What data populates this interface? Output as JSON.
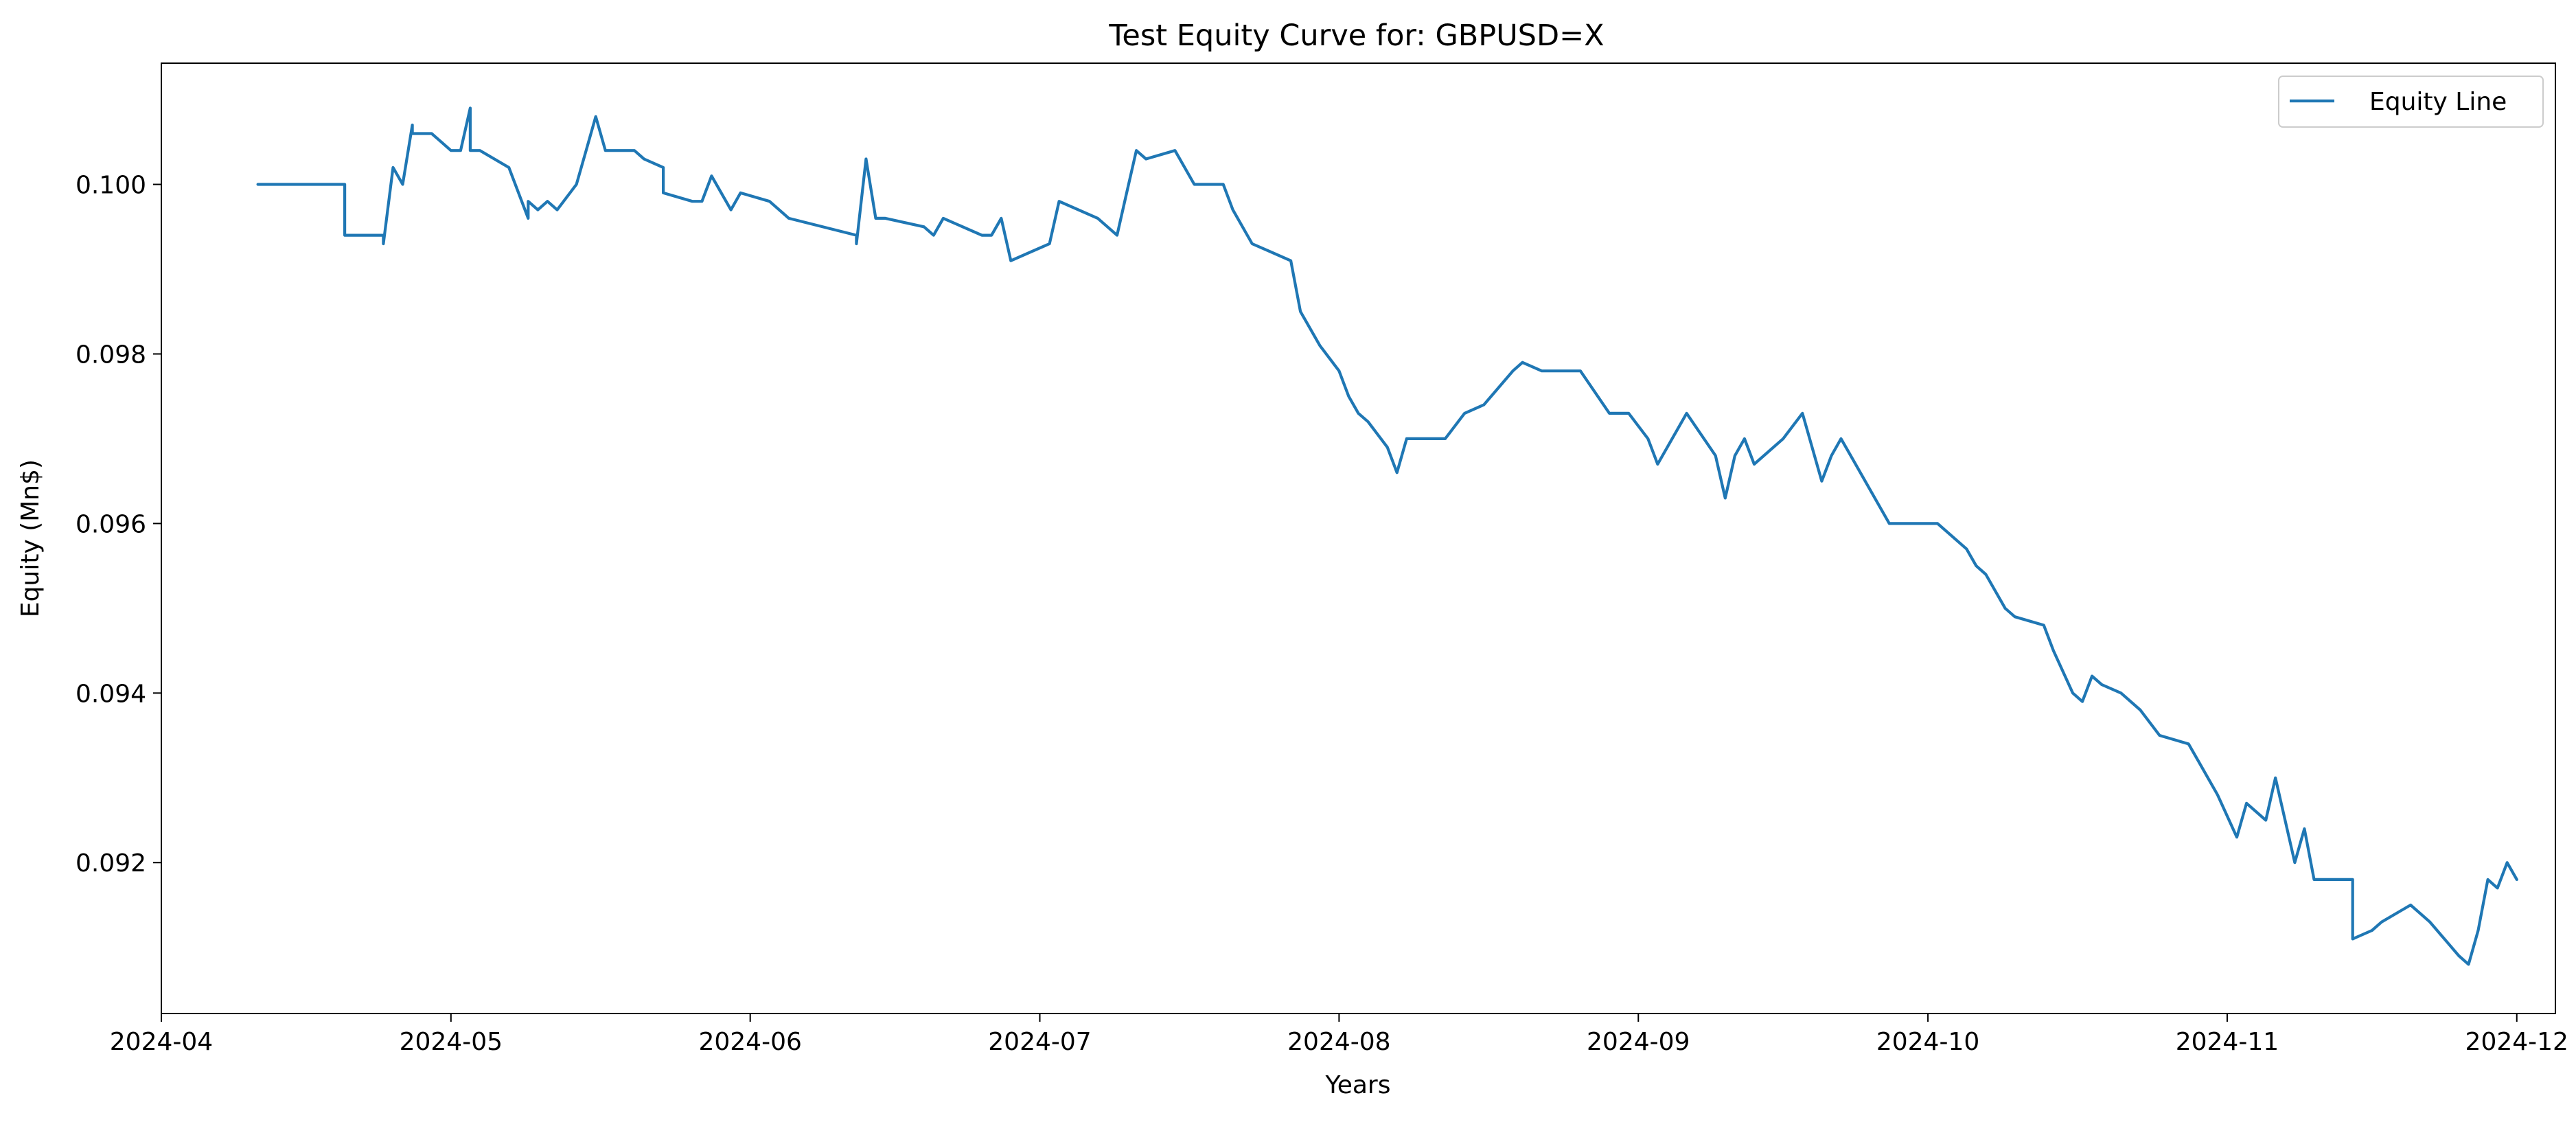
{
  "chart_data": {
    "type": "line",
    "title": "Test Equity Curve for: GBPUSD=X",
    "xlabel": "Years",
    "ylabel": "Equity (Mn$)",
    "xlim": [
      "2024-04-01",
      "2024-12-05"
    ],
    "ylim": [
      0.09022,
      0.10143
    ],
    "x_ticks": [
      "2024-04",
      "2024-05",
      "2024-06",
      "2024-07",
      "2024-08",
      "2024-09",
      "2024-10",
      "2024-11",
      "2024-12"
    ],
    "y_ticks": [
      "0.092",
      "0.094",
      "0.096",
      "0.098",
      "0.100"
    ],
    "grid": false,
    "legend": {
      "position": "top-right",
      "entries": [
        "Equity Line"
      ]
    },
    "series": [
      {
        "name": "Equity Line",
        "color": "#1f77b4",
        "x": [
          "2024-04-11",
          "2024-04-20",
          "2024-04-20",
          "2024-04-24",
          "2024-04-24",
          "2024-04-25",
          "2024-04-26",
          "2024-04-27",
          "2024-04-27",
          "2024-04-29",
          "2024-04-30",
          "2024-05-01",
          "2024-05-02",
          "2024-05-03",
          "2024-05-03",
          "2024-05-04",
          "2024-05-07",
          "2024-05-07",
          "2024-05-09",
          "2024-05-09",
          "2024-05-10",
          "2024-05-11",
          "2024-05-12",
          "2024-05-14",
          "2024-05-15",
          "2024-05-16",
          "2024-05-17",
          "2024-05-20",
          "2024-05-21",
          "2024-05-23",
          "2024-05-23",
          "2024-05-26",
          "2024-05-27",
          "2024-05-28",
          "2024-05-30",
          "2024-05-31",
          "2024-06-03",
          "2024-06-05",
          "2024-06-12",
          "2024-06-12",
          "2024-06-13",
          "2024-06-14",
          "2024-06-15",
          "2024-06-19",
          "2024-06-20",
          "2024-06-21",
          "2024-06-25",
          "2024-06-26",
          "2024-06-27",
          "2024-06-28",
          "2024-06-30",
          "2024-07-02",
          "2024-07-03",
          "2024-07-07",
          "2024-07-09",
          "2024-07-10",
          "2024-07-11",
          "2024-07-12",
          "2024-07-15",
          "2024-07-17",
          "2024-07-20",
          "2024-07-21",
          "2024-07-23",
          "2024-07-25",
          "2024-07-27",
          "2024-07-28",
          "2024-07-30",
          "2024-08-01",
          "2024-08-02",
          "2024-08-03",
          "2024-08-04",
          "2024-08-06",
          "2024-08-07",
          "2024-08-08",
          "2024-08-09",
          "2024-08-12",
          "2024-08-14",
          "2024-08-16",
          "2024-08-19",
          "2024-08-20",
          "2024-08-22",
          "2024-08-26",
          "2024-08-29",
          "2024-08-31",
          "2024-09-02",
          "2024-09-03",
          "2024-09-06",
          "2024-09-09",
          "2024-09-10",
          "2024-09-11",
          "2024-09-12",
          "2024-09-13",
          "2024-09-16",
          "2024-09-18",
          "2024-09-20",
          "2024-09-21",
          "2024-09-22",
          "2024-09-23",
          "2024-09-27",
          "2024-09-28",
          "2024-10-02",
          "2024-10-05",
          "2024-10-06",
          "2024-10-07",
          "2024-10-09",
          "2024-10-10",
          "2024-10-13",
          "2024-10-14",
          "2024-10-16",
          "2024-10-17",
          "2024-10-18",
          "2024-10-19",
          "2024-10-21",
          "2024-10-23",
          "2024-10-25",
          "2024-10-28",
          "2024-10-29",
          "2024-10-31",
          "2024-11-02",
          "2024-11-03",
          "2024-11-05",
          "2024-11-06",
          "2024-11-08",
          "2024-11-09",
          "2024-11-10",
          "2024-11-11",
          "2024-11-14",
          "2024-11-14",
          "2024-11-16",
          "2024-11-17",
          "2024-11-20",
          "2024-11-22",
          "2024-11-25",
          "2024-11-26",
          "2024-11-27",
          "2024-11-28",
          "2024-11-29",
          "2024-11-30",
          "2024-12-01"
        ],
        "values": [
          0.1,
          0.1,
          0.0994,
          0.0994,
          0.0993,
          0.1002,
          0.1,
          0.1007,
          0.1006,
          0.1006,
          0.1005,
          0.1004,
          0.1004,
          0.1009,
          0.1004,
          0.1004,
          0.1002,
          0.1002,
          0.0996,
          0.0998,
          0.0997,
          0.0998,
          0.0997,
          0.1,
          0.1004,
          0.1008,
          0.1004,
          0.1004,
          0.1003,
          0.1002,
          0.0999,
          0.0998,
          0.0998,
          0.1001,
          0.0997,
          0.0999,
          0.0998,
          0.0996,
          0.0994,
          0.0993,
          0.1003,
          0.0996,
          0.0996,
          0.0995,
          0.0994,
          0.0996,
          0.0994,
          0.0994,
          0.0996,
          0.0991,
          0.0992,
          0.0993,
          0.0998,
          0.0996,
          0.0994,
          0.0999,
          0.1004,
          0.1003,
          0.1004,
          0.1,
          0.1,
          0.0997,
          0.0993,
          0.0992,
          0.0991,
          0.0985,
          0.0981,
          0.0978,
          0.0975,
          0.0973,
          0.0972,
          0.0969,
          0.0966,
          0.097,
          0.097,
          0.097,
          0.0973,
          0.0974,
          0.0978,
          0.0979,
          0.0978,
          0.0978,
          0.0973,
          0.0973,
          0.097,
          0.0967,
          0.0973,
          0.0968,
          0.0963,
          0.0968,
          0.097,
          0.0967,
          0.097,
          0.0973,
          0.0965,
          0.0968,
          0.097,
          0.0968,
          0.096,
          0.096,
          0.096,
          0.0957,
          0.0955,
          0.0954,
          0.095,
          0.0949,
          0.0948,
          0.0945,
          0.094,
          0.0939,
          0.0942,
          0.0941,
          0.094,
          0.0938,
          0.0935,
          0.0934,
          0.0932,
          0.0928,
          0.0923,
          0.0927,
          0.0925,
          0.093,
          0.092,
          0.0924,
          0.0918,
          0.0918,
          0.0918,
          0.0911,
          0.0912,
          0.0913,
          0.0915,
          0.0913,
          0.0909,
          0.0908,
          0.0912,
          0.0918,
          0.0917,
          0.092,
          0.0918
        ]
      }
    ]
  }
}
